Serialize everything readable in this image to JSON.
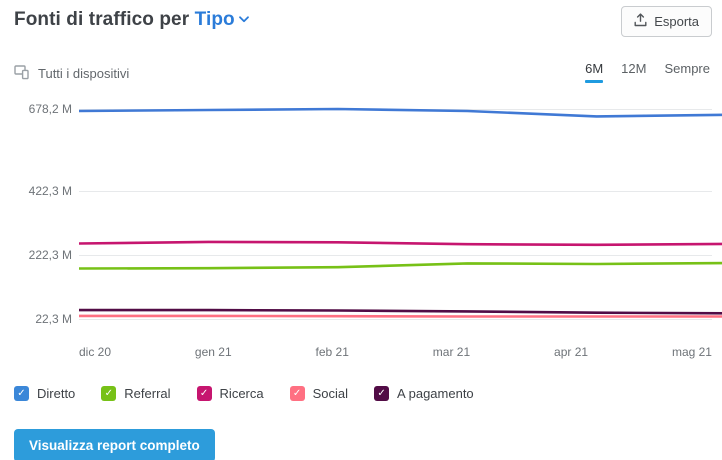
{
  "header": {
    "title_prefix": "Fonti di traffico per ",
    "title_selector": "Tipo",
    "export_label": "Esporta"
  },
  "toolbar": {
    "device_filter": "Tutti i dispositivi",
    "ranges": [
      {
        "label": "6M",
        "selected": true
      },
      {
        "label": "12M",
        "selected": false
      },
      {
        "label": "Sempre",
        "selected": false
      }
    ]
  },
  "chart_data": {
    "type": "line",
    "unit": "M",
    "x": [
      "dic 20",
      "gen 21",
      "feb 21",
      "mar 21",
      "apr 21",
      "mag 21"
    ],
    "series": [
      {
        "name": "Diretto",
        "color": "#4079d5",
        "values": [
          672,
          675,
          678.2,
          672,
          655,
          660
        ]
      },
      {
        "name": "Referral",
        "color": "#77c117",
        "values": [
          180,
          181,
          184,
          196,
          194,
          197
        ]
      },
      {
        "name": "Ricerca",
        "color": "#c6156f",
        "values": [
          258,
          263,
          262,
          256,
          254,
          257
        ]
      },
      {
        "name": "Social",
        "color": "#ff7082",
        "values": [
          32,
          32,
          31,
          30,
          30,
          30
        ]
      },
      {
        "name": "A pagamento",
        "color": "#520c46",
        "values": [
          50,
          50,
          49,
          46,
          42,
          40
        ]
      }
    ],
    "yticks": [
      {
        "value": 678.2,
        "label": "678,2 M"
      },
      {
        "value": 422.3,
        "label": "422,3 M"
      },
      {
        "value": 222.3,
        "label": "222,3 M"
      },
      {
        "value": 22.3,
        "label": "22,3 M"
      }
    ],
    "ylim": [
      22.3,
      678.2
    ],
    "grid": true,
    "legend_position": "bottom"
  },
  "legend": {
    "checkmark": "✓",
    "items": [
      {
        "label": "Diretto",
        "color": "#3b87d8",
        "checked": true
      },
      {
        "label": "Referral",
        "color": "#77c117",
        "checked": true
      },
      {
        "label": "Ricerca",
        "color": "#c6156f",
        "checked": true
      },
      {
        "label": "Social",
        "color": "#ff7082",
        "checked": true
      },
      {
        "label": "A pagamento",
        "color": "#520c46",
        "checked": true
      }
    ]
  },
  "footer": {
    "cta_label": "Visualizza report completo"
  },
  "colors": {
    "accent_blue": "#1f9be0",
    "link_blue": "#2b7cd9",
    "cta_blue": "#2d9cdb"
  }
}
